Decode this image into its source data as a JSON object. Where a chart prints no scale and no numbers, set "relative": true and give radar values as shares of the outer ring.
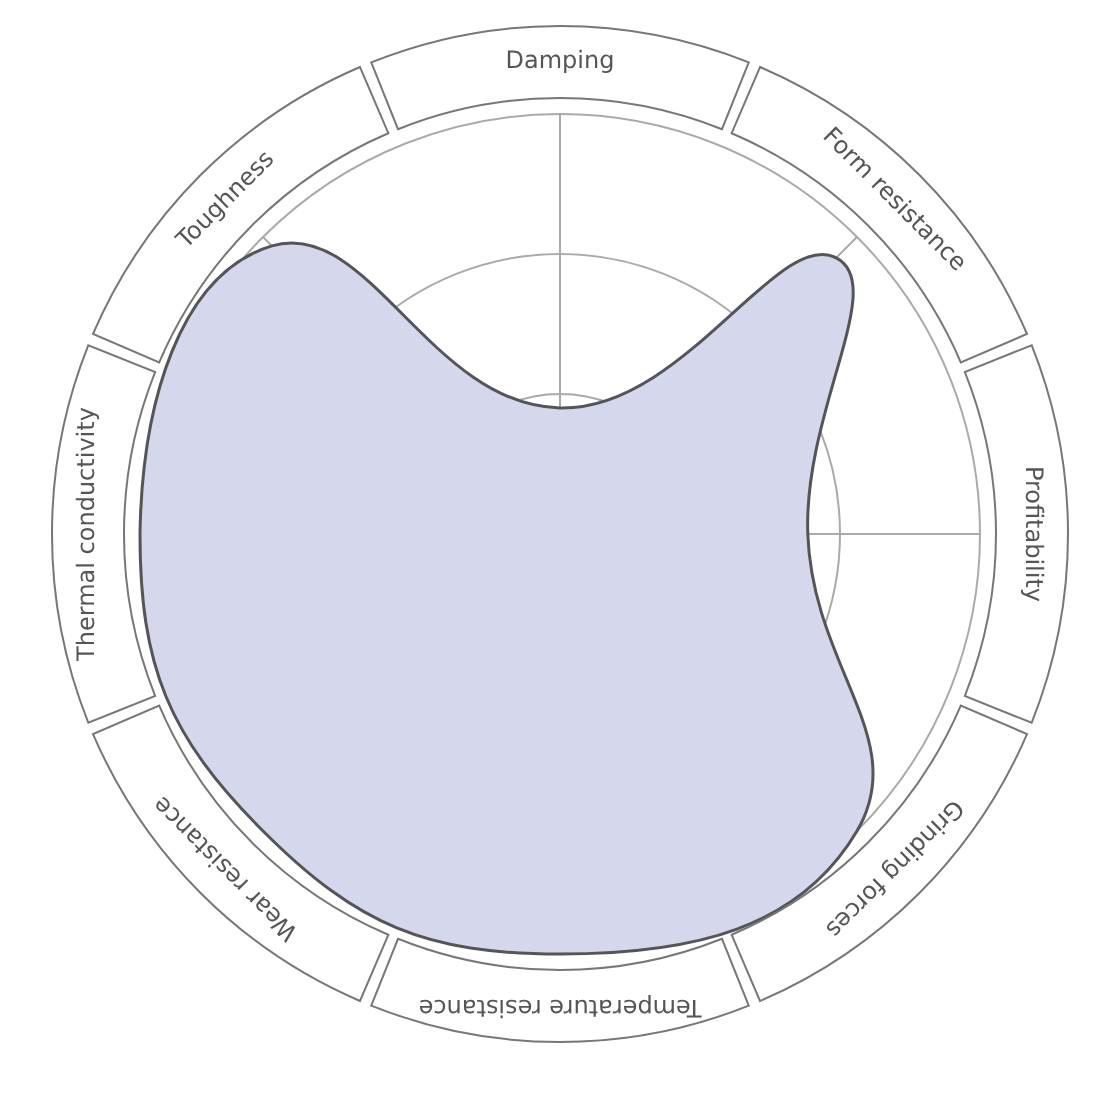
{
  "chart_data": {
    "type": "radar",
    "relative": true,
    "grid": true,
    "legend": false,
    "categories": [
      "Damping",
      "Form resistance",
      "Profitability",
      "Grinding forces",
      "Temperature resistance",
      "Wear resistance",
      "Thermal conductivity",
      "Toughness"
    ],
    "series": [
      {
        "color": "#d5d8ec",
        "values": [
          0.3,
          0.93,
          0.59,
          1,
          1,
          1,
          1,
          0.97
        ]
      }
    ]
  }
}
